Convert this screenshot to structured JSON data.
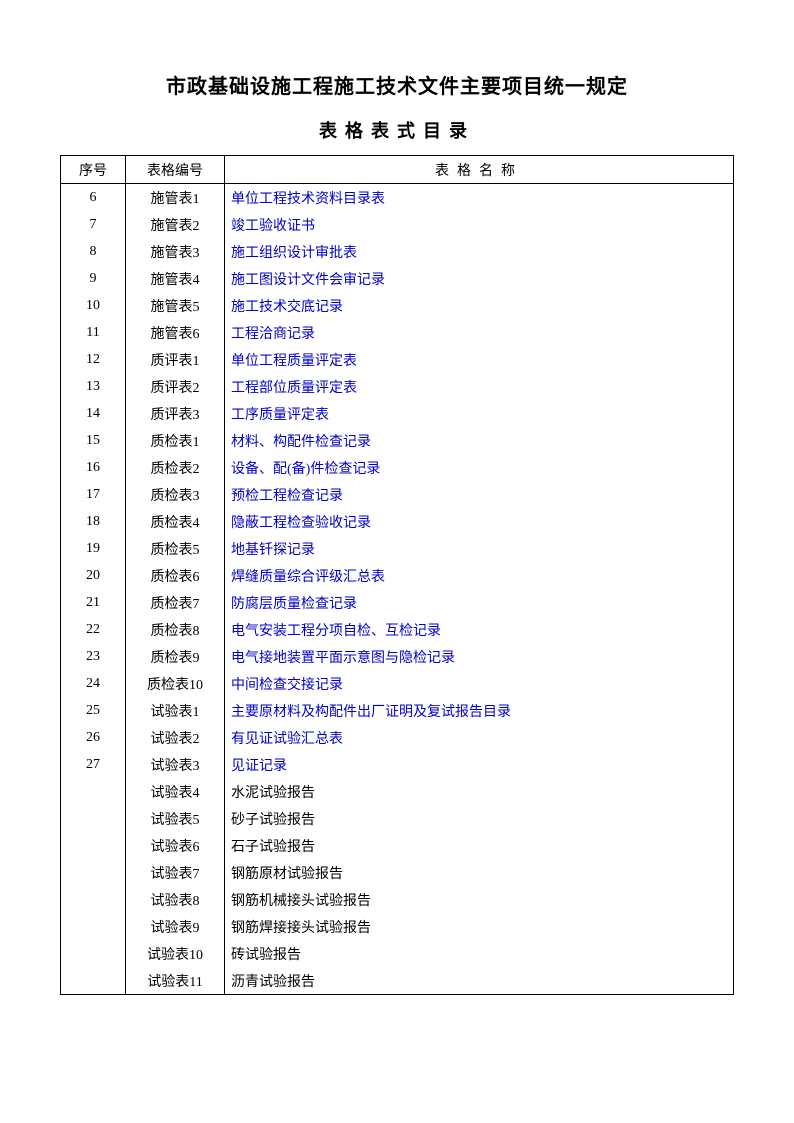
{
  "title": "市政基础设施工程施工技术文件主要项目统一规定",
  "subtitle": "表格表式目录",
  "headers": {
    "seq": "序号",
    "code": "表格编号",
    "name": "表格名称"
  },
  "link_color": "#0000cc",
  "text_color": "#000000",
  "rows": [
    {
      "seq": "6",
      "code": "施管表1",
      "name": "单位工程技术资料目录表",
      "link": true
    },
    {
      "seq": "7",
      "code": "施管表2",
      "name": "竣工验收证书",
      "link": true
    },
    {
      "seq": "8",
      "code": "施管表3",
      "name": "施工组织设计审批表",
      "link": true
    },
    {
      "seq": "9",
      "code": "施管表4",
      "name": "施工图设计文件会审记录",
      "link": true
    },
    {
      "seq": "10",
      "code": "施管表5",
      "name": "施工技术交底记录",
      "link": true
    },
    {
      "seq": "11",
      "code": "施管表6",
      "name": "工程洽商记录",
      "link": true
    },
    {
      "seq": "12",
      "code": "质评表1",
      "name": "单位工程质量评定表",
      "link": true
    },
    {
      "seq": "13",
      "code": "质评表2",
      "name": "工程部位质量评定表",
      "link": true
    },
    {
      "seq": "14",
      "code": "质评表3",
      "name": "工序质量评定表",
      "link": true
    },
    {
      "seq": "15",
      "code": "质检表1",
      "name": "材料、构配件检查记录",
      "link": true
    },
    {
      "seq": "16",
      "code": "质检表2",
      "name": "设备、配(备)件检查记录",
      "link": true
    },
    {
      "seq": "17",
      "code": "质检表3",
      "name": "预检工程检查记录",
      "link": true
    },
    {
      "seq": "18",
      "code": "质检表4",
      "name": "隐蔽工程检查验收记录",
      "link": true
    },
    {
      "seq": "19",
      "code": "质检表5",
      "name": "地基钎探记录",
      "link": true
    },
    {
      "seq": "20",
      "code": "质检表6",
      "name": "焊缝质量综合评级汇总表",
      "link": true
    },
    {
      "seq": "21",
      "code": "质检表7",
      "name": "防腐层质量检查记录",
      "link": true
    },
    {
      "seq": "22",
      "code": "质检表8",
      "name": "电气安装工程分项自检、互检记录",
      "link": true
    },
    {
      "seq": "23",
      "code": "质检表9",
      "name": "电气接地装置平面示意图与隐检记录",
      "link": true
    },
    {
      "seq": "24",
      "code": "质检表10",
      "name": "中间检查交接记录",
      "link": true
    },
    {
      "seq": "25",
      "code": "试验表1",
      "name": "主要原材料及构配件出厂证明及复试报告目录",
      "link": true
    },
    {
      "seq": "26",
      "code": "试验表2",
      "name": "有见证试验汇总表",
      "link": true
    },
    {
      "seq": "27",
      "code": "试验表3",
      "name": "见证记录",
      "link": true
    },
    {
      "seq": "",
      "code": "试验表4",
      "name": "水泥试验报告",
      "link": false
    },
    {
      "seq": "",
      "code": "试验表5",
      "name": "砂子试验报告",
      "link": false
    },
    {
      "seq": "",
      "code": "试验表6",
      "name": "石子试验报告",
      "link": false
    },
    {
      "seq": "",
      "code": "试验表7",
      "name": "钢筋原材试验报告",
      "link": false
    },
    {
      "seq": "",
      "code": "试验表8",
      "name": "钢筋机械接头试验报告",
      "link": false
    },
    {
      "seq": "",
      "code": "试验表9",
      "name": "钢筋焊接接头试验报告",
      "link": false
    },
    {
      "seq": "",
      "code": "试验表10",
      "name": "砖试验报告",
      "link": false
    },
    {
      "seq": "",
      "code": "试验表11",
      "name": "沥青试验报告",
      "link": false
    }
  ]
}
